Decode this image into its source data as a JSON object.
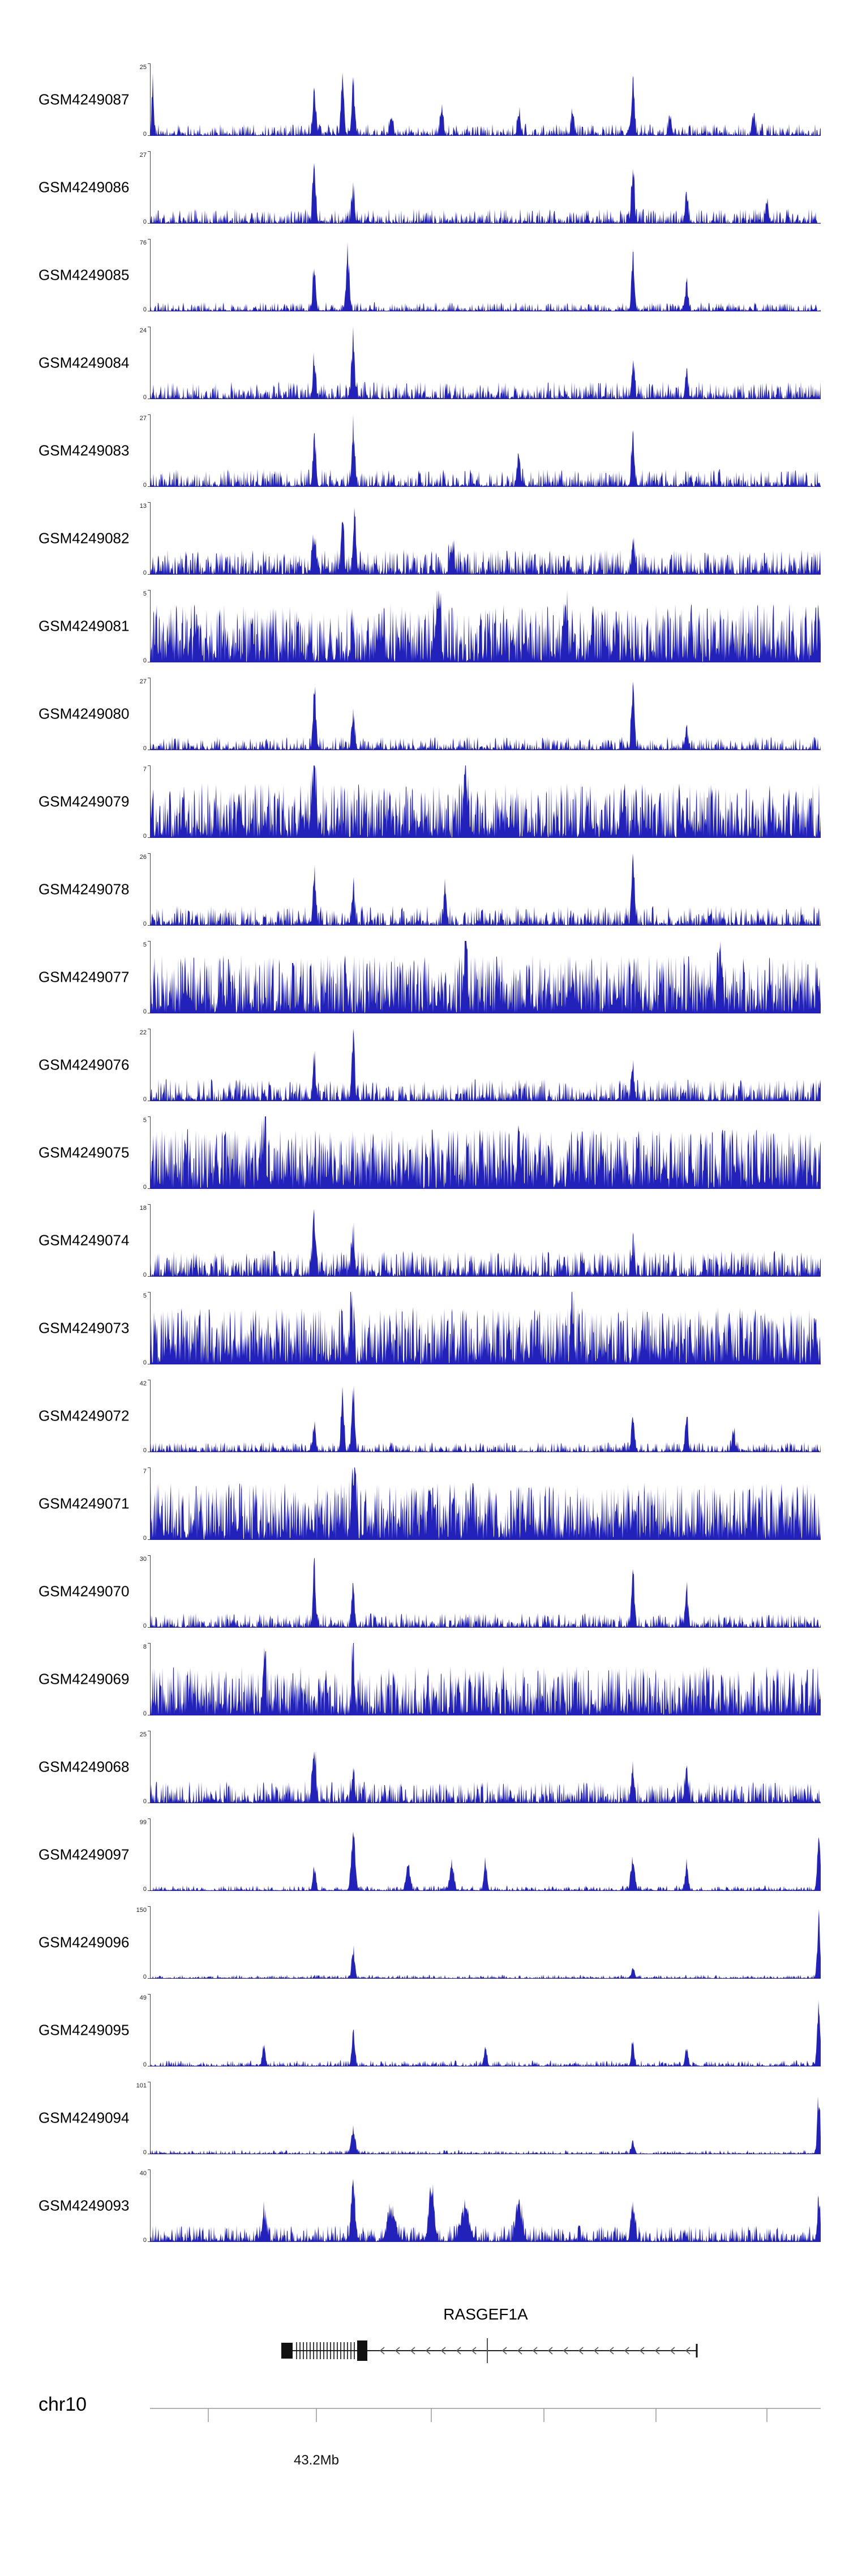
{
  "chart_data": {
    "type": "area",
    "description": "Genome browser coverage tracks for 25 GEO samples over the RASGEF1A locus on chr10; each track is a filled blue signal histogram with its own y-axis maximum, 0 baseline, gene model below and a chromosome ruler.",
    "signal_color": "#2222bb",
    "y_min_label": "0",
    "x_axis": {
      "chromosome": "chr10",
      "tick_label": "43.2Mb"
    },
    "gene": {
      "name": "RASGEF1A",
      "strand": "-",
      "direction": "left"
    },
    "tracks": [
      {
        "label": "GSM4249087",
        "ymax": 25,
        "seed": 11,
        "noise": 0.16,
        "spike": 3.2,
        "peaks": [
          [
            0.004,
            0.9,
            0.002
          ],
          [
            0.245,
            0.72,
            0.003
          ],
          [
            0.287,
            0.97,
            0.003
          ],
          [
            0.303,
            0.88,
            0.003
          ],
          [
            0.36,
            0.3,
            0.003
          ],
          [
            0.435,
            0.42,
            0.003
          ],
          [
            0.55,
            0.38,
            0.003
          ],
          [
            0.63,
            0.3,
            0.003
          ],
          [
            0.72,
            0.85,
            0.003
          ],
          [
            0.775,
            0.3,
            0.003
          ],
          [
            0.9,
            0.32,
            0.003
          ]
        ]
      },
      {
        "label": "GSM4249086",
        "ymax": 27,
        "seed": 12,
        "noise": 0.2,
        "spike": 3.0,
        "peaks": [
          [
            0.245,
            0.95,
            0.003
          ],
          [
            0.303,
            0.5,
            0.003
          ],
          [
            0.72,
            0.88,
            0.003
          ],
          [
            0.8,
            0.45,
            0.003
          ],
          [
            0.92,
            0.35,
            0.003
          ]
        ]
      },
      {
        "label": "GSM4249085",
        "ymax": 76,
        "seed": 13,
        "noise": 0.12,
        "spike": 3.4,
        "peaks": [
          [
            0.245,
            0.78,
            0.003
          ],
          [
            0.295,
            0.97,
            0.003
          ],
          [
            0.72,
            0.9,
            0.003
          ],
          [
            0.8,
            0.42,
            0.003
          ]
        ]
      },
      {
        "label": "GSM4249084",
        "ymax": 24,
        "seed": 14,
        "noise": 0.24,
        "spike": 2.8,
        "peaks": [
          [
            0.245,
            0.5,
            0.003
          ],
          [
            0.303,
            0.95,
            0.003
          ],
          [
            0.72,
            0.55,
            0.003
          ],
          [
            0.8,
            0.4,
            0.003
          ]
        ]
      },
      {
        "label": "GSM4249083",
        "ymax": 27,
        "seed": 15,
        "noise": 0.24,
        "spike": 2.8,
        "peaks": [
          [
            0.245,
            0.85,
            0.003
          ],
          [
            0.303,
            0.92,
            0.003
          ],
          [
            0.55,
            0.4,
            0.003
          ],
          [
            0.72,
            0.85,
            0.003
          ]
        ]
      },
      {
        "label": "GSM4249082",
        "ymax": 13,
        "seed": 16,
        "noise": 0.34,
        "spike": 2.2,
        "peaks": [
          [
            0.245,
            0.5,
            0.004
          ],
          [
            0.287,
            0.8,
            0.003
          ],
          [
            0.305,
            0.97,
            0.003
          ],
          [
            0.45,
            0.4,
            0.004
          ],
          [
            0.72,
            0.5,
            0.003
          ]
        ]
      },
      {
        "label": "GSM4249081",
        "ymax": 5,
        "seed": 17,
        "noise": 0.8,
        "spike": 1.4,
        "peaks": [
          [
            0.43,
            0.95,
            0.004
          ],
          [
            0.62,
            0.85,
            0.003
          ]
        ]
      },
      {
        "label": "GSM4249080",
        "ymax": 27,
        "seed": 18,
        "noise": 0.18,
        "spike": 3.0,
        "peaks": [
          [
            0.245,
            0.97,
            0.003
          ],
          [
            0.303,
            0.55,
            0.003
          ],
          [
            0.72,
            0.95,
            0.003
          ],
          [
            0.8,
            0.3,
            0.003
          ]
        ]
      },
      {
        "label": "GSM4249079",
        "ymax": 7,
        "seed": 19,
        "noise": 0.75,
        "spike": 1.5,
        "peaks": [
          [
            0.245,
            0.9,
            0.004
          ],
          [
            0.47,
            0.95,
            0.004
          ]
        ]
      },
      {
        "label": "GSM4249078",
        "ymax": 26,
        "seed": 20,
        "noise": 0.27,
        "spike": 2.6,
        "peaks": [
          [
            0.245,
            0.78,
            0.003
          ],
          [
            0.303,
            0.6,
            0.003
          ],
          [
            0.44,
            0.5,
            0.003
          ],
          [
            0.72,
            0.95,
            0.003
          ]
        ]
      },
      {
        "label": "GSM4249077",
        "ymax": 5,
        "seed": 21,
        "noise": 0.8,
        "spike": 1.4,
        "peaks": [
          [
            0.47,
            0.95,
            0.003
          ],
          [
            0.85,
            0.85,
            0.003
          ]
        ]
      },
      {
        "label": "GSM4249076",
        "ymax": 22,
        "seed": 22,
        "noise": 0.3,
        "spike": 2.4,
        "peaks": [
          [
            0.245,
            0.55,
            0.003
          ],
          [
            0.303,
            0.95,
            0.003
          ],
          [
            0.72,
            0.45,
            0.003
          ]
        ]
      },
      {
        "label": "GSM4249075",
        "ymax": 5,
        "seed": 23,
        "noise": 0.82,
        "spike": 1.3,
        "peaks": [
          [
            0.17,
            0.9,
            0.003
          ],
          [
            0.55,
            0.85,
            0.003
          ]
        ]
      },
      {
        "label": "GSM4249074",
        "ymax": 18,
        "seed": 24,
        "noise": 0.35,
        "spike": 2.2,
        "peaks": [
          [
            0.245,
            0.95,
            0.003
          ],
          [
            0.303,
            0.5,
            0.003
          ],
          [
            0.72,
            0.45,
            0.003
          ]
        ]
      },
      {
        "label": "GSM4249073",
        "ymax": 5,
        "seed": 25,
        "noise": 0.78,
        "spike": 1.4,
        "peaks": [
          [
            0.3,
            0.85,
            0.003
          ],
          [
            0.63,
            0.8,
            0.003
          ]
        ]
      },
      {
        "label": "GSM4249072",
        "ymax": 42,
        "seed": 26,
        "noise": 0.14,
        "spike": 3.2,
        "peaks": [
          [
            0.245,
            0.42,
            0.003
          ],
          [
            0.287,
            0.88,
            0.003
          ],
          [
            0.303,
            0.97,
            0.003
          ],
          [
            0.72,
            0.6,
            0.003
          ],
          [
            0.8,
            0.55,
            0.003
          ],
          [
            0.87,
            0.3,
            0.003
          ]
        ]
      },
      {
        "label": "GSM4249071",
        "ymax": 7,
        "seed": 27,
        "noise": 0.78,
        "spike": 1.4,
        "peaks": [
          [
            0.303,
            0.9,
            0.004
          ]
        ]
      },
      {
        "label": "GSM4249070",
        "ymax": 30,
        "seed": 28,
        "noise": 0.2,
        "spike": 2.9,
        "peaks": [
          [
            0.245,
            0.9,
            0.003
          ],
          [
            0.303,
            0.62,
            0.003
          ],
          [
            0.72,
            0.95,
            0.003
          ],
          [
            0.8,
            0.5,
            0.003
          ]
        ]
      },
      {
        "label": "GSM4249069",
        "ymax": 8,
        "seed": 29,
        "noise": 0.68,
        "spike": 1.6,
        "peaks": [
          [
            0.17,
            0.9,
            0.003
          ],
          [
            0.303,
            0.8,
            0.003
          ]
        ]
      },
      {
        "label": "GSM4249068",
        "ymax": 25,
        "seed": 30,
        "noise": 0.3,
        "spike": 2.5,
        "peaks": [
          [
            0.245,
            0.95,
            0.003
          ],
          [
            0.303,
            0.5,
            0.003
          ],
          [
            0.72,
            0.45,
            0.003
          ],
          [
            0.8,
            0.55,
            0.003
          ]
        ]
      },
      {
        "label": "GSM4249097",
        "ymax": 99,
        "seed": 31,
        "noise": 0.07,
        "spike": 3.6,
        "peaks": [
          [
            0.245,
            0.35,
            0.003
          ],
          [
            0.303,
            0.95,
            0.004
          ],
          [
            0.385,
            0.4,
            0.004
          ],
          [
            0.45,
            0.45,
            0.004
          ],
          [
            0.5,
            0.5,
            0.003
          ],
          [
            0.72,
            0.5,
            0.004
          ],
          [
            0.8,
            0.42,
            0.003
          ],
          [
            0.997,
            0.9,
            0.003
          ]
        ]
      },
      {
        "label": "GSM4249096",
        "ymax": 150,
        "seed": 32,
        "noise": 0.05,
        "spike": 4.0,
        "peaks": [
          [
            0.303,
            0.5,
            0.003
          ],
          [
            0.72,
            0.18,
            0.003
          ],
          [
            0.997,
            0.95,
            0.003
          ]
        ]
      },
      {
        "label": "GSM4249095",
        "ymax": 49,
        "seed": 33,
        "noise": 0.08,
        "spike": 3.6,
        "peaks": [
          [
            0.17,
            0.35,
            0.003
          ],
          [
            0.303,
            0.55,
            0.003
          ],
          [
            0.5,
            0.3,
            0.003
          ],
          [
            0.72,
            0.35,
            0.003
          ],
          [
            0.8,
            0.3,
            0.003
          ],
          [
            0.997,
            0.95,
            0.003
          ]
        ]
      },
      {
        "label": "GSM4249094",
        "ymax": 101,
        "seed": 34,
        "noise": 0.05,
        "spike": 4.0,
        "peaks": [
          [
            0.303,
            0.45,
            0.004
          ],
          [
            0.72,
            0.2,
            0.003
          ],
          [
            0.997,
            0.95,
            0.003
          ]
        ]
      },
      {
        "label": "GSM4249093",
        "ymax": 40,
        "seed": 35,
        "noise": 0.22,
        "spike": 2.6,
        "peaks": [
          [
            0.17,
            0.4,
            0.004
          ],
          [
            0.303,
            0.9,
            0.004
          ],
          [
            0.36,
            0.5,
            0.008
          ],
          [
            0.42,
            0.95,
            0.005
          ],
          [
            0.47,
            0.5,
            0.009
          ],
          [
            0.55,
            0.7,
            0.006
          ],
          [
            0.72,
            0.6,
            0.004
          ],
          [
            0.997,
            0.65,
            0.003
          ]
        ]
      }
    ]
  }
}
